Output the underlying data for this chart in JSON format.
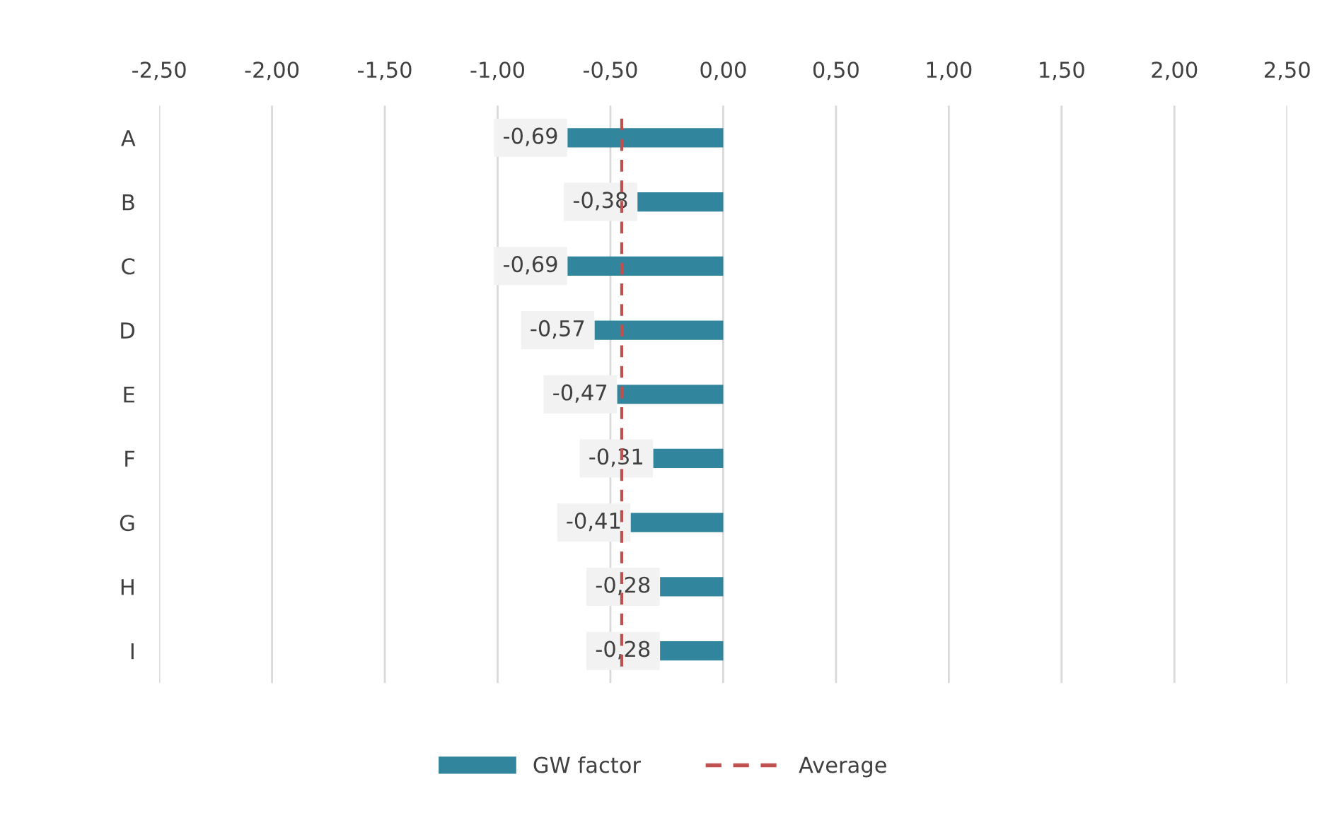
{
  "chart_data": {
    "type": "bar",
    "orientation": "horizontal",
    "categories": [
      "A",
      "B",
      "C",
      "D",
      "E",
      "F",
      "G",
      "H",
      "I"
    ],
    "series": [
      {
        "name": "GW factor",
        "color": "#31859c",
        "values": [
          -0.69,
          -0.38,
          -0.69,
          -0.57,
          -0.47,
          -0.31,
          -0.41,
          -0.28,
          -0.28
        ],
        "value_labels": [
          "-0,69",
          "-0,38",
          "-0,69",
          "-0,57",
          "-0,47",
          "-0,31",
          "-0,41",
          "-0,28",
          "-0,28"
        ]
      }
    ],
    "xlim": [
      -2.5,
      2.5
    ],
    "xticks": [
      {
        "value": -2.5,
        "label": "-2,50"
      },
      {
        "value": -2.0,
        "label": "-2,00"
      },
      {
        "value": -1.5,
        "label": "-1,50"
      },
      {
        "value": -1.0,
        "label": "-1,00"
      },
      {
        "value": -0.5,
        "label": "-0,50"
      },
      {
        "value": 0,
        "label": "0,00"
      },
      {
        "value": 0.5,
        "label": "0,50"
      },
      {
        "value": 1.0,
        "label": "1,00"
      },
      {
        "value": 1.5,
        "label": "1,50"
      },
      {
        "value": 2.0,
        "label": "2,00"
      },
      {
        "value": 2.5,
        "label": "2,50"
      }
    ],
    "ref_lines": [
      {
        "axis": "x",
        "value": -0.45,
        "label": "Average",
        "color": "#c0504d",
        "line_style": "dashed"
      }
    ],
    "grid": "x",
    "legend": "bottom"
  }
}
